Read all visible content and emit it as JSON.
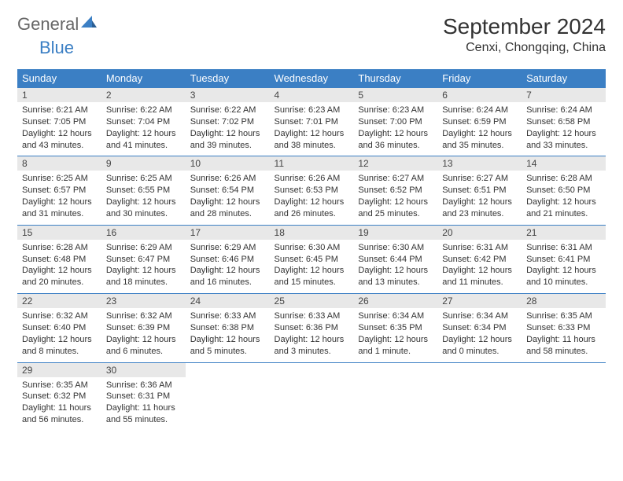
{
  "logo": {
    "part1": "General",
    "part2": "Blue"
  },
  "header": {
    "month_title": "September 2024",
    "location": "Cenxi, Chongqing, China"
  },
  "colors": {
    "header_bg": "#3b7fc4",
    "header_text": "#ffffff",
    "daynum_bg": "#e8e8e8",
    "border": "#3b7fc4",
    "text": "#333333",
    "logo_gray": "#666666",
    "logo_blue": "#3b7fc4"
  },
  "typography": {
    "month_title_size_pt": 21,
    "location_size_pt": 12,
    "weekday_size_pt": 10,
    "daynum_size_pt": 9,
    "body_size_pt": 8
  },
  "weekdays": [
    "Sunday",
    "Monday",
    "Tuesday",
    "Wednesday",
    "Thursday",
    "Friday",
    "Saturday"
  ],
  "weeks": [
    [
      {
        "day": "1",
        "sunrise": "Sunrise: 6:21 AM",
        "sunset": "Sunset: 7:05 PM",
        "daylight": "Daylight: 12 hours and 43 minutes."
      },
      {
        "day": "2",
        "sunrise": "Sunrise: 6:22 AM",
        "sunset": "Sunset: 7:04 PM",
        "daylight": "Daylight: 12 hours and 41 minutes."
      },
      {
        "day": "3",
        "sunrise": "Sunrise: 6:22 AM",
        "sunset": "Sunset: 7:02 PM",
        "daylight": "Daylight: 12 hours and 39 minutes."
      },
      {
        "day": "4",
        "sunrise": "Sunrise: 6:23 AM",
        "sunset": "Sunset: 7:01 PM",
        "daylight": "Daylight: 12 hours and 38 minutes."
      },
      {
        "day": "5",
        "sunrise": "Sunrise: 6:23 AM",
        "sunset": "Sunset: 7:00 PM",
        "daylight": "Daylight: 12 hours and 36 minutes."
      },
      {
        "day": "6",
        "sunrise": "Sunrise: 6:24 AM",
        "sunset": "Sunset: 6:59 PM",
        "daylight": "Daylight: 12 hours and 35 minutes."
      },
      {
        "day": "7",
        "sunrise": "Sunrise: 6:24 AM",
        "sunset": "Sunset: 6:58 PM",
        "daylight": "Daylight: 12 hours and 33 minutes."
      }
    ],
    [
      {
        "day": "8",
        "sunrise": "Sunrise: 6:25 AM",
        "sunset": "Sunset: 6:57 PM",
        "daylight": "Daylight: 12 hours and 31 minutes."
      },
      {
        "day": "9",
        "sunrise": "Sunrise: 6:25 AM",
        "sunset": "Sunset: 6:55 PM",
        "daylight": "Daylight: 12 hours and 30 minutes."
      },
      {
        "day": "10",
        "sunrise": "Sunrise: 6:26 AM",
        "sunset": "Sunset: 6:54 PM",
        "daylight": "Daylight: 12 hours and 28 minutes."
      },
      {
        "day": "11",
        "sunrise": "Sunrise: 6:26 AM",
        "sunset": "Sunset: 6:53 PM",
        "daylight": "Daylight: 12 hours and 26 minutes."
      },
      {
        "day": "12",
        "sunrise": "Sunrise: 6:27 AM",
        "sunset": "Sunset: 6:52 PM",
        "daylight": "Daylight: 12 hours and 25 minutes."
      },
      {
        "day": "13",
        "sunrise": "Sunrise: 6:27 AM",
        "sunset": "Sunset: 6:51 PM",
        "daylight": "Daylight: 12 hours and 23 minutes."
      },
      {
        "day": "14",
        "sunrise": "Sunrise: 6:28 AM",
        "sunset": "Sunset: 6:50 PM",
        "daylight": "Daylight: 12 hours and 21 minutes."
      }
    ],
    [
      {
        "day": "15",
        "sunrise": "Sunrise: 6:28 AM",
        "sunset": "Sunset: 6:48 PM",
        "daylight": "Daylight: 12 hours and 20 minutes."
      },
      {
        "day": "16",
        "sunrise": "Sunrise: 6:29 AM",
        "sunset": "Sunset: 6:47 PM",
        "daylight": "Daylight: 12 hours and 18 minutes."
      },
      {
        "day": "17",
        "sunrise": "Sunrise: 6:29 AM",
        "sunset": "Sunset: 6:46 PM",
        "daylight": "Daylight: 12 hours and 16 minutes."
      },
      {
        "day": "18",
        "sunrise": "Sunrise: 6:30 AM",
        "sunset": "Sunset: 6:45 PM",
        "daylight": "Daylight: 12 hours and 15 minutes."
      },
      {
        "day": "19",
        "sunrise": "Sunrise: 6:30 AM",
        "sunset": "Sunset: 6:44 PM",
        "daylight": "Daylight: 12 hours and 13 minutes."
      },
      {
        "day": "20",
        "sunrise": "Sunrise: 6:31 AM",
        "sunset": "Sunset: 6:42 PM",
        "daylight": "Daylight: 12 hours and 11 minutes."
      },
      {
        "day": "21",
        "sunrise": "Sunrise: 6:31 AM",
        "sunset": "Sunset: 6:41 PM",
        "daylight": "Daylight: 12 hours and 10 minutes."
      }
    ],
    [
      {
        "day": "22",
        "sunrise": "Sunrise: 6:32 AM",
        "sunset": "Sunset: 6:40 PM",
        "daylight": "Daylight: 12 hours and 8 minutes."
      },
      {
        "day": "23",
        "sunrise": "Sunrise: 6:32 AM",
        "sunset": "Sunset: 6:39 PM",
        "daylight": "Daylight: 12 hours and 6 minutes."
      },
      {
        "day": "24",
        "sunrise": "Sunrise: 6:33 AM",
        "sunset": "Sunset: 6:38 PM",
        "daylight": "Daylight: 12 hours and 5 minutes."
      },
      {
        "day": "25",
        "sunrise": "Sunrise: 6:33 AM",
        "sunset": "Sunset: 6:36 PM",
        "daylight": "Daylight: 12 hours and 3 minutes."
      },
      {
        "day": "26",
        "sunrise": "Sunrise: 6:34 AM",
        "sunset": "Sunset: 6:35 PM",
        "daylight": "Daylight: 12 hours and 1 minute."
      },
      {
        "day": "27",
        "sunrise": "Sunrise: 6:34 AM",
        "sunset": "Sunset: 6:34 PM",
        "daylight": "Daylight: 12 hours and 0 minutes."
      },
      {
        "day": "28",
        "sunrise": "Sunrise: 6:35 AM",
        "sunset": "Sunset: 6:33 PM",
        "daylight": "Daylight: 11 hours and 58 minutes."
      }
    ],
    [
      {
        "day": "29",
        "sunrise": "Sunrise: 6:35 AM",
        "sunset": "Sunset: 6:32 PM",
        "daylight": "Daylight: 11 hours and 56 minutes."
      },
      {
        "day": "30",
        "sunrise": "Sunrise: 6:36 AM",
        "sunset": "Sunset: 6:31 PM",
        "daylight": "Daylight: 11 hours and 55 minutes."
      },
      null,
      null,
      null,
      null,
      null
    ]
  ]
}
